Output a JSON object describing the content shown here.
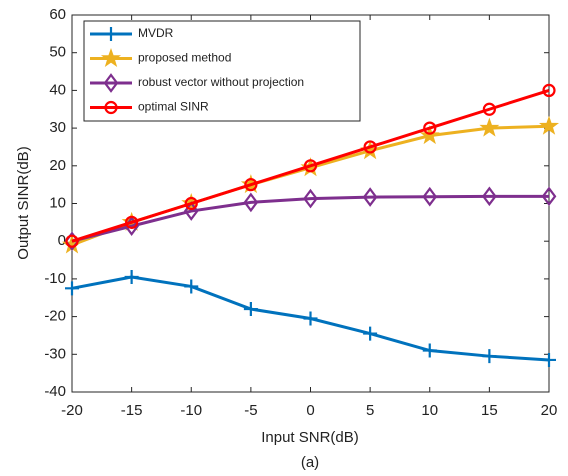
{
  "chart_data": {
    "type": "line",
    "xlabel": "Input SNR(dB)",
    "ylabel": "Output SINR(dB)",
    "caption": "(a)",
    "x": [
      -20,
      -15,
      -10,
      -5,
      0,
      5,
      10,
      15,
      20
    ],
    "series": [
      {
        "name": "MVDR",
        "color": "#0072bd",
        "marker": "plus",
        "values": [
          -12.5,
          -9.5,
          -12,
          -18,
          -20.5,
          -24.5,
          -29,
          -30.5,
          -31.5
        ]
      },
      {
        "name": "proposed method",
        "color": "#edb120",
        "marker": "star",
        "values": [
          -1,
          5,
          10,
          15,
          19.5,
          24,
          28,
          30,
          30.5
        ]
      },
      {
        "name": "robust vector without projection",
        "color": "#7e2f8e",
        "marker": "diamond",
        "values": [
          0,
          4,
          8,
          10.3,
          11.3,
          11.7,
          11.8,
          11.9,
          11.9
        ]
      },
      {
        "name": "optimal SINR",
        "color": "#ff0000",
        "marker": "circle",
        "values": [
          0,
          5,
          10,
          15,
          20,
          25,
          30,
          35,
          40
        ]
      }
    ],
    "xlim": [
      -20,
      20
    ],
    "xticks": [
      -20,
      -15,
      -10,
      -5,
      0,
      5,
      10,
      15,
      20
    ],
    "ylim": [
      -40,
      60
    ],
    "yticks": [
      -40,
      -30,
      -20,
      -10,
      0,
      10,
      20,
      30,
      40,
      50,
      60
    ],
    "legend": "upper left"
  }
}
